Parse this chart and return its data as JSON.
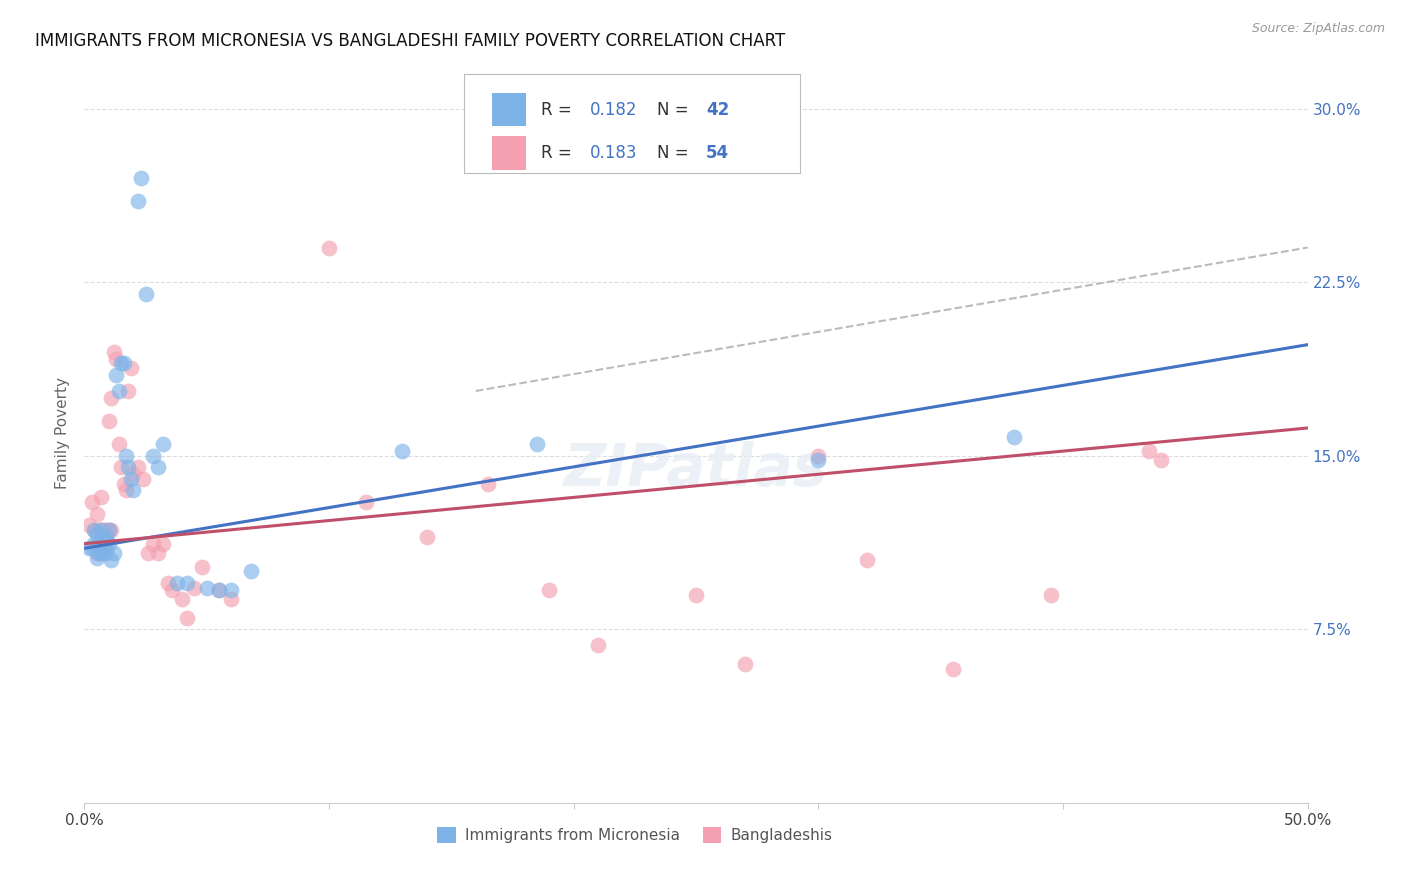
{
  "title": "IMMIGRANTS FROM MICRONESIA VS BANGLADESHI FAMILY POVERTY CORRELATION CHART",
  "source": "Source: ZipAtlas.com",
  "ylabel": "Family Poverty",
  "ytick_labels": [
    "7.5%",
    "15.0%",
    "22.5%",
    "30.0%"
  ],
  "ytick_values": [
    0.075,
    0.15,
    0.225,
    0.3
  ],
  "xlim": [
    0.0,
    0.5
  ],
  "ylim": [
    0.0,
    0.32
  ],
  "legend_r1": "0.182",
  "legend_n1": "42",
  "legend_r2": "0.183",
  "legend_n2": "54",
  "blue_color": "#7EB3E8",
  "pink_color": "#F4A0B0",
  "blue_line_color": "#4472C4",
  "pink_line_color": "#C0506A",
  "dashed_line_color": "#BBBBBB",
  "background_color": "#FFFFFF",
  "grid_color": "#DDDDDD",
  "blue_scatter_x": [
    0.002,
    0.003,
    0.004,
    0.004,
    0.005,
    0.005,
    0.006,
    0.006,
    0.007,
    0.007,
    0.008,
    0.008,
    0.009,
    0.009,
    0.01,
    0.01,
    0.011,
    0.012,
    0.013,
    0.014,
    0.015,
    0.016,
    0.017,
    0.018,
    0.019,
    0.02,
    0.022,
    0.023,
    0.025,
    0.028,
    0.03,
    0.032,
    0.038,
    0.042,
    0.05,
    0.055,
    0.06,
    0.068,
    0.13,
    0.185,
    0.3,
    0.38
  ],
  "blue_scatter_y": [
    0.11,
    0.11,
    0.118,
    0.112,
    0.106,
    0.116,
    0.112,
    0.108,
    0.118,
    0.108,
    0.114,
    0.11,
    0.108,
    0.115,
    0.112,
    0.118,
    0.105,
    0.108,
    0.185,
    0.178,
    0.19,
    0.19,
    0.15,
    0.145,
    0.14,
    0.135,
    0.26,
    0.27,
    0.22,
    0.15,
    0.145,
    0.155,
    0.095,
    0.095,
    0.093,
    0.092,
    0.092,
    0.1,
    0.152,
    0.155,
    0.148,
    0.158
  ],
  "pink_scatter_x": [
    0.002,
    0.003,
    0.004,
    0.005,
    0.005,
    0.006,
    0.006,
    0.007,
    0.007,
    0.008,
    0.008,
    0.009,
    0.009,
    0.01,
    0.01,
    0.011,
    0.011,
    0.012,
    0.013,
    0.014,
    0.015,
    0.016,
    0.017,
    0.018,
    0.019,
    0.02,
    0.022,
    0.024,
    0.026,
    0.028,
    0.03,
    0.032,
    0.034,
    0.036,
    0.04,
    0.042,
    0.045,
    0.048,
    0.055,
    0.06,
    0.1,
    0.115,
    0.14,
    0.165,
    0.19,
    0.21,
    0.25,
    0.27,
    0.3,
    0.32,
    0.355,
    0.395,
    0.435,
    0.44
  ],
  "pink_scatter_y": [
    0.12,
    0.13,
    0.118,
    0.108,
    0.125,
    0.118,
    0.112,
    0.118,
    0.132,
    0.108,
    0.118,
    0.11,
    0.118,
    0.118,
    0.165,
    0.118,
    0.175,
    0.195,
    0.192,
    0.155,
    0.145,
    0.138,
    0.135,
    0.178,
    0.188,
    0.142,
    0.145,
    0.14,
    0.108,
    0.112,
    0.108,
    0.112,
    0.095,
    0.092,
    0.088,
    0.08,
    0.093,
    0.102,
    0.092,
    0.088,
    0.24,
    0.13,
    0.115,
    0.138,
    0.092,
    0.068,
    0.09,
    0.06,
    0.15,
    0.105,
    0.058,
    0.09,
    0.152,
    0.148
  ],
  "blue_line_x": [
    0.0,
    0.5
  ],
  "blue_line_y": [
    0.11,
    0.198
  ],
  "pink_line_x": [
    0.0,
    0.5
  ],
  "pink_line_y": [
    0.112,
    0.162
  ],
  "dashed_line_x": [
    0.16,
    0.5
  ],
  "dashed_line_y": [
    0.178,
    0.24
  ]
}
